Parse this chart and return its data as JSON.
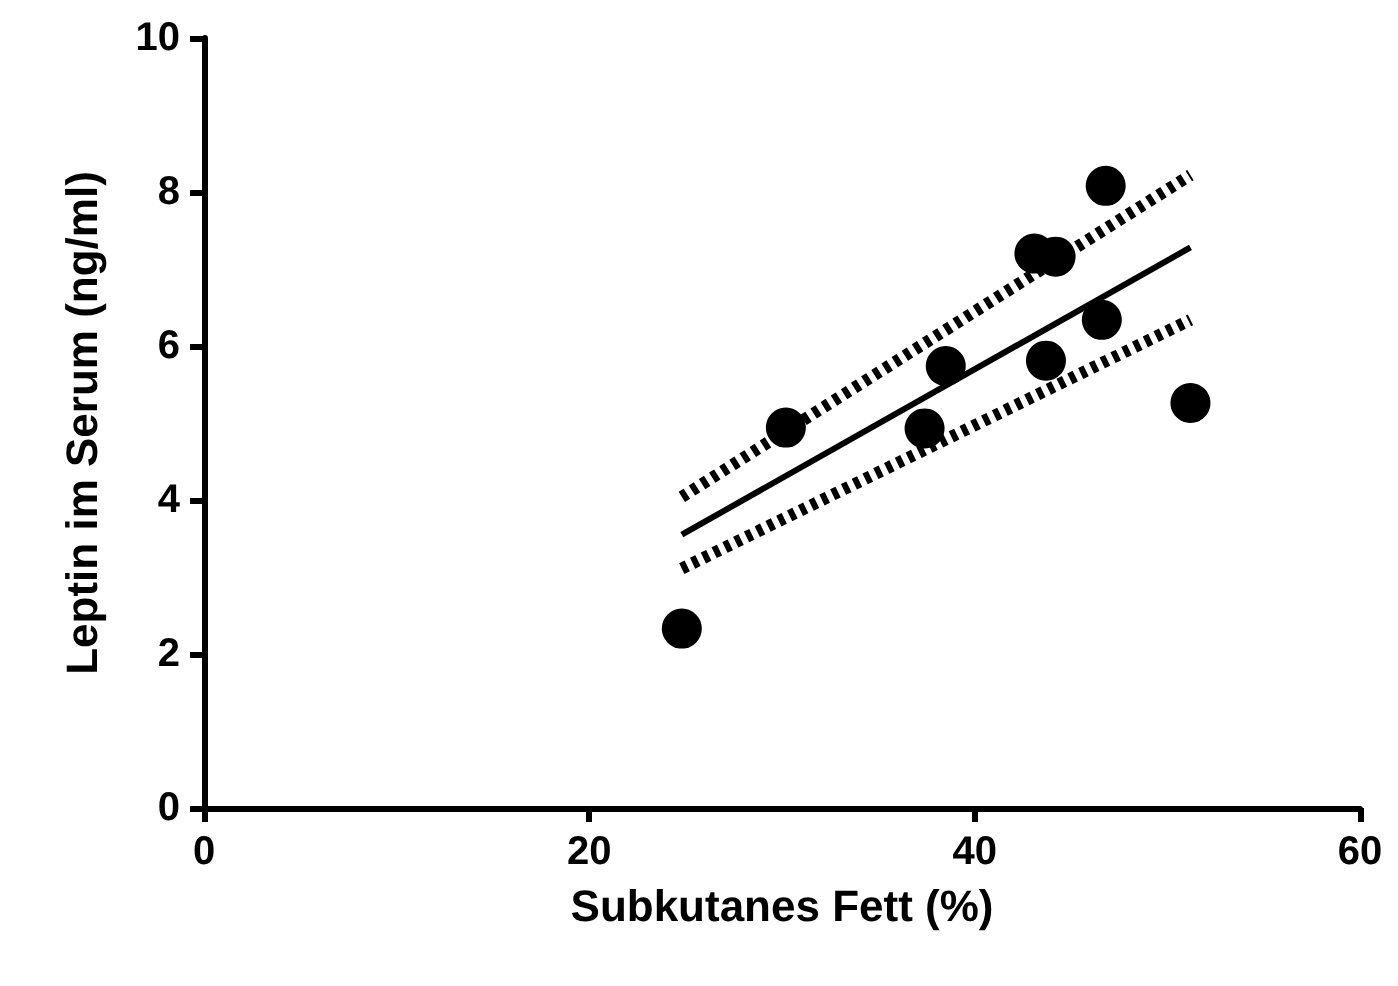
{
  "chart_data": {
    "type": "scatter",
    "xlabel": "Subkutanes Fett (%)",
    "ylabel": "Leptin im Serum (ng/ml)",
    "xlim": [
      0,
      60
    ],
    "xticks": [
      0,
      20,
      40,
      60
    ],
    "ylim": [
      0,
      10
    ],
    "yticks": [
      0,
      2,
      4,
      6,
      8,
      10
    ],
    "grid": false,
    "series": [
      {
        "color": "#000000",
        "marker": "circle",
        "x": [
          24.8,
          30.2,
          37.4,
          38.5,
          43.1,
          44.2,
          43.7,
          46.6,
          46.8,
          51.2
        ],
        "values": [
          2.33,
          4.94,
          4.93,
          5.74,
          7.2,
          7.16,
          5.81,
          6.34,
          8.08,
          5.26
        ]
      },
      {
        "type": "line",
        "color": "#000000",
        "marker": "none",
        "line_style": "solid",
        "x": [
          24.8,
          51.2
        ],
        "values": [
          3.55,
          7.28
        ]
      },
      {
        "type": "line",
        "color": "#000000",
        "marker": "none",
        "line_style": "dotted",
        "x": [
          24.8,
          51.2
        ],
        "values": [
          4.04,
          8.22
        ]
      },
      {
        "type": "line",
        "color": "#000000",
        "marker": "none",
        "line_style": "dotted",
        "x": [
          24.8,
          51.2
        ],
        "values": [
          3.11,
          6.34
        ]
      }
    ]
  }
}
